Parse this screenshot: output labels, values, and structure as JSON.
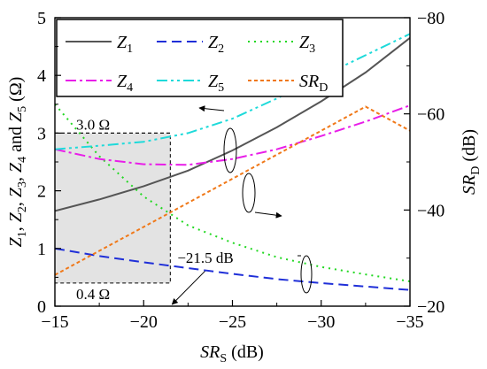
{
  "chart_data": {
    "type": "line",
    "xlabel": {
      "main": "SR",
      "sub": "S",
      "unit": " (dB)"
    },
    "ylabel_left": {
      "parts": [
        {
          "t": "Z",
          "sub": "1"
        },
        {
          "t": ", "
        },
        {
          "t": "Z",
          "sub": "2"
        },
        {
          "t": ", "
        },
        {
          "t": "Z",
          "sub": "3"
        },
        {
          "t": ", "
        },
        {
          "t": "Z",
          "sub": "4"
        },
        {
          "t": " and "
        },
        {
          "t": "Z",
          "sub": "5"
        },
        {
          "t": " (Ω)"
        }
      ]
    },
    "ylabel_right": {
      "main": "SR",
      "sub": "D",
      "unit": " (dB)"
    },
    "xlim": [
      -15,
      -35
    ],
    "ylim_left": [
      0,
      5
    ],
    "ylim_right": [
      -20,
      -80
    ],
    "xticks": [
      -15,
      -20,
      -25,
      -30,
      -35
    ],
    "xtick_labels": [
      "−15",
      "−20",
      "−25",
      "−30",
      "−35"
    ],
    "yticks_left": [
      0,
      1,
      2,
      3,
      4,
      5
    ],
    "ytick_labels_left": [
      "0",
      "1",
      "2",
      "3",
      "4",
      "5"
    ],
    "yticks_right": [
      -20,
      -40,
      -60,
      -80
    ],
    "ytick_labels_right": [
      "−20",
      "−40",
      "−60",
      "−80"
    ],
    "x": [
      -15,
      -17.5,
      -20,
      -22.5,
      -25,
      -27.5,
      -30,
      -32.5,
      -35
    ],
    "series": [
      {
        "name": "Z",
        "sub": "1",
        "axis": "left",
        "color": "#555555",
        "dash": "",
        "values": [
          1.65,
          1.85,
          2.08,
          2.35,
          2.7,
          3.1,
          3.55,
          4.05,
          4.65
        ]
      },
      {
        "name": "Z",
        "sub": "2",
        "axis": "left",
        "color": "#1f2fd8",
        "dash": "11,6",
        "values": [
          1.0,
          0.87,
          0.76,
          0.66,
          0.56,
          0.47,
          0.4,
          0.34,
          0.28
        ]
      },
      {
        "name": "Z",
        "sub": "3",
        "axis": "left",
        "color": "#22d822",
        "dash": "2,5",
        "values": [
          3.5,
          2.6,
          1.9,
          1.4,
          1.1,
          0.85,
          0.68,
          0.55,
          0.43
        ]
      },
      {
        "name": "Z",
        "sub": "4",
        "axis": "left",
        "color": "#e81ee8",
        "dash": "12,4,3,4",
        "values": [
          2.72,
          2.55,
          2.46,
          2.45,
          2.55,
          2.72,
          2.95,
          3.2,
          3.48
        ]
      },
      {
        "name": "Z",
        "sub": "5",
        "axis": "left",
        "color": "#1edada",
        "dash": "12,4,3,4,3,4",
        "values": [
          2.72,
          2.78,
          2.85,
          3.0,
          3.25,
          3.6,
          3.98,
          4.35,
          4.72
        ]
      },
      {
        "name": "SR",
        "sub": "D",
        "axis": "right",
        "color": "#f07818",
        "dash": "4,3",
        "values": [
          -26.5,
          -31.5,
          -36.5,
          -41.5,
          -46.5,
          -51.5,
          -56.5,
          -61.5,
          -56.5
        ]
      }
    ],
    "annotations": {
      "box": {
        "x": [
          -15,
          -21.5
        ],
        "y": [
          0.4,
          3.0
        ]
      },
      "label_upper": "3.0 Ω",
      "label_lower": "0.4 Ω",
      "label_marker": "−21.5 dB"
    },
    "legend_position": "top-left",
    "grid": false
  }
}
